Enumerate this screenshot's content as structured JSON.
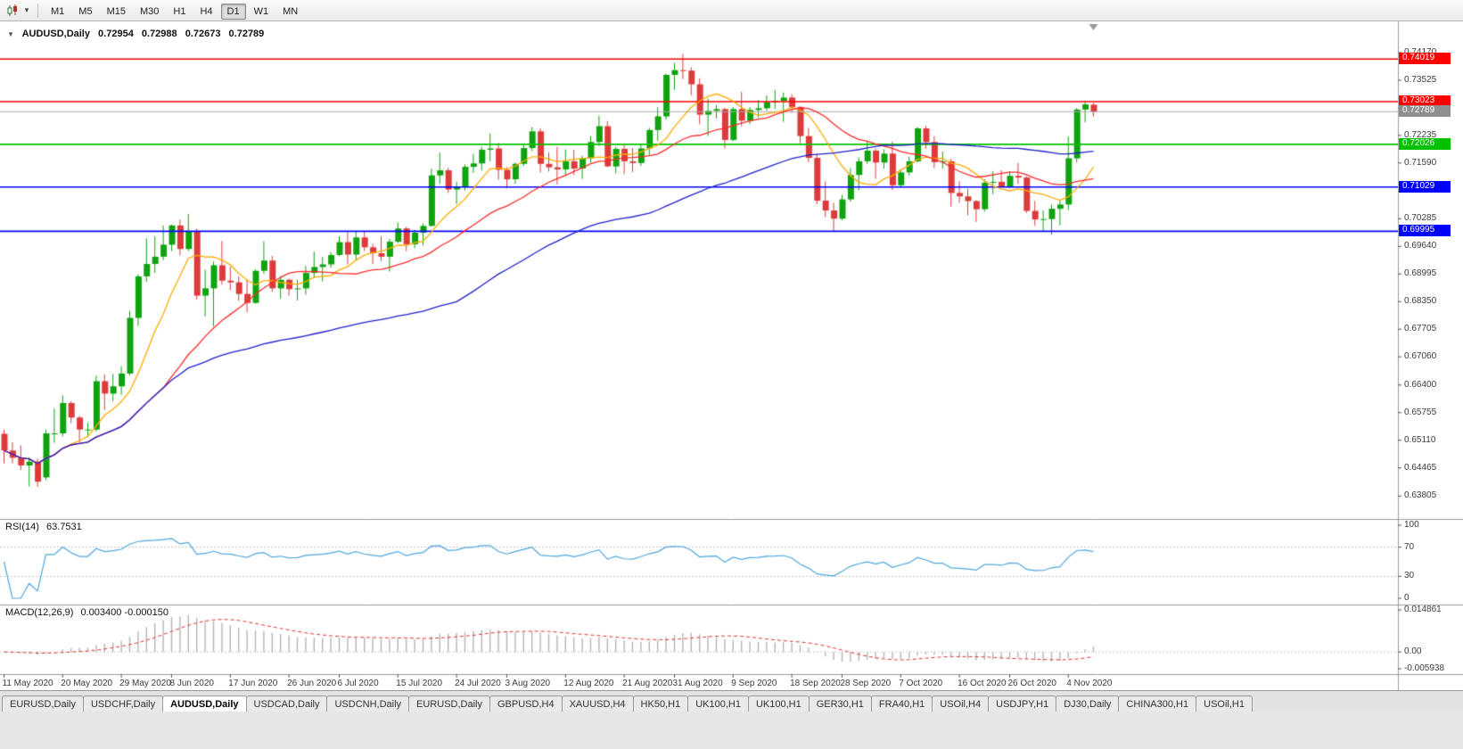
{
  "toolbar": {
    "chart_type_icon": "candlestick-chart-icon",
    "dropdown_glyph": "▾",
    "timeframes": [
      "M1",
      "M5",
      "M15",
      "M30",
      "H1",
      "H4",
      "D1",
      "W1",
      "MN"
    ],
    "active_timeframe": "D1"
  },
  "chart_header": {
    "collapse_glyph": "▼",
    "symbol": "AUDUSD,Daily",
    "open": "0.72954",
    "high": "0.72988",
    "low": "0.72673",
    "close": "0.72789"
  },
  "price_axis": {
    "tick_labels": [
      "0.74170",
      "0.73525",
      "0.72880",
      "0.72235",
      "0.71590",
      "0.70930",
      "0.70285",
      "0.69640",
      "0.68995",
      "0.68350",
      "0.67705",
      "0.67060",
      "0.66400",
      "0.65755",
      "0.65110",
      "0.64465",
      "0.63805"
    ]
  },
  "rsi_panel": {
    "label": "RSI(14)",
    "value": "63.7531",
    "tick_labels": [
      "100",
      "70",
      "30",
      "0"
    ],
    "level_lines": [
      70,
      30
    ],
    "line_color": "#4da6dd"
  },
  "macd_panel": {
    "label": "MACD(12,26,9)",
    "values": "0.003400 -0.000150",
    "tick_labels": [
      "0.014861",
      "0.00",
      "-0.005938"
    ],
    "scale_max": 0.014861,
    "scale_min": -0.005938,
    "hist_color": "#b4b4b4",
    "signal_color": "#e03232"
  },
  "tabs": {
    "items": [
      "EURUSD,Daily",
      "USDCHF,Daily",
      "AUDUSD,Daily",
      "USDCAD,Daily",
      "USDCNH,Daily",
      "EURUSD,Daily",
      "GBPUSD,H4",
      "XAUUSD,H4",
      "HK50,H1",
      "UK100,H1",
      "UK100,H1",
      "GER30,H1",
      "FRA40,H1",
      "USOil,H4",
      "USDJPY,H1",
      "DJ30,Daily",
      "CHINA300,H1",
      "USOil,H1"
    ],
    "active_index": 2
  },
  "chart_data": {
    "type": "candlestick",
    "title": "AUDUSD,Daily",
    "scale_max": 0.749,
    "scale_min": 0.6327,
    "levels": [
      {
        "label": "0.74019",
        "price": 0.74019,
        "color": "#ff0000"
      },
      {
        "label": "0.73023",
        "price": 0.73023,
        "color": "#ff0000"
      },
      {
        "label": "0.72026",
        "price": 0.72026,
        "color": "#00c000"
      },
      {
        "label": "0.71029",
        "price": 0.71029,
        "color": "#0000ff"
      },
      {
        "label": "0.69995",
        "price": 0.69995,
        "color": "#0000ff"
      }
    ],
    "bid": {
      "label": "0.72789",
      "price": 0.72789,
      "color": "#8f8f8f"
    },
    "moving_averages": [
      {
        "type": "sma",
        "period": 8,
        "color": "#ffaa00"
      },
      {
        "type": "sma",
        "period": 20,
        "color": "#ff2a2a"
      },
      {
        "type": "sma",
        "period": 55,
        "color": "#2020cc"
      }
    ],
    "candle_colors": {
      "bull": "#0fa30f",
      "bear": "#dd3b3b"
    },
    "x_axis_labels": [
      [
        0,
        "11 May 2020"
      ],
      [
        7,
        "20 May 2020"
      ],
      [
        14,
        "29 May 2020"
      ],
      [
        20,
        "8 Jun 2020"
      ],
      [
        27,
        "17 Jun 2020"
      ],
      [
        34,
        "26 Jun 2020"
      ],
      [
        40,
        "6 Jul 2020"
      ],
      [
        47,
        "15 Jul 2020"
      ],
      [
        54,
        "24 Jul 2020"
      ],
      [
        60,
        "3 Aug 2020"
      ],
      [
        67,
        "12 Aug 2020"
      ],
      [
        74,
        "21 Aug 2020"
      ],
      [
        80,
        "31 Aug 2020"
      ],
      [
        87,
        "9 Sep 2020"
      ],
      [
        94,
        "18 Sep 2020"
      ],
      [
        100,
        "28 Sep 2020"
      ],
      [
        107,
        "7 Oct 2020"
      ],
      [
        114,
        "16 Oct 2020"
      ],
      [
        120,
        "26 Oct 2020"
      ],
      [
        127,
        "4 Nov 2020"
      ]
    ],
    "candles": [
      [
        "11 May",
        0.6526,
        0.6536,
        0.6457,
        0.6487
      ],
      [
        "12 May",
        0.6487,
        0.6506,
        0.6457,
        0.647
      ],
      [
        "13 May",
        0.647,
        0.6499,
        0.6441,
        0.6452
      ],
      [
        "14 May",
        0.6452,
        0.6471,
        0.6403,
        0.6461
      ],
      [
        "15 May",
        0.6461,
        0.6468,
        0.6402,
        0.6414
      ],
      [
        "18 May",
        0.6424,
        0.6536,
        0.6418,
        0.6527
      ],
      [
        "19 May",
        0.6527,
        0.6585,
        0.6505,
        0.6527
      ],
      [
        "20 May",
        0.6527,
        0.6616,
        0.652,
        0.6598
      ],
      [
        "21 May",
        0.6598,
        0.6602,
        0.6551,
        0.6564
      ],
      [
        "22 May",
        0.6564,
        0.6568,
        0.6506,
        0.6536
      ],
      [
        "25 May",
        0.6536,
        0.6552,
        0.6518,
        0.6536
      ],
      [
        "26 May",
        0.6536,
        0.6662,
        0.6532,
        0.6649
      ],
      [
        "27 May",
        0.6649,
        0.6665,
        0.6582,
        0.662
      ],
      [
        "28 May",
        0.662,
        0.6666,
        0.6602,
        0.6637
      ],
      [
        "29 May",
        0.6637,
        0.6684,
        0.6617,
        0.6667
      ],
      [
        "1 Jun",
        0.6667,
        0.6813,
        0.6662,
        0.6797
      ],
      [
        "2 Jun",
        0.6797,
        0.6899,
        0.6778,
        0.6894
      ],
      [
        "3 Jun",
        0.6894,
        0.6983,
        0.6881,
        0.6923
      ],
      [
        "4 Jun",
        0.6923,
        0.6988,
        0.6902,
        0.694
      ],
      [
        "5 Jun",
        0.694,
        0.7013,
        0.6932,
        0.6968
      ],
      [
        "8 Jun",
        0.6968,
        0.7015,
        0.6953,
        0.7013
      ],
      [
        "9 Jun",
        0.7013,
        0.7027,
        0.6943,
        0.6958
      ],
      [
        "10 Jun",
        0.6958,
        0.704,
        0.6953,
        0.7
      ],
      [
        "11 Jun",
        0.7,
        0.7006,
        0.684,
        0.6849
      ],
      [
        "12 Jun",
        0.6849,
        0.691,
        0.68,
        0.6866
      ],
      [
        "15 Jun",
        0.6866,
        0.6929,
        0.6777,
        0.692
      ],
      [
        "16 Jun",
        0.692,
        0.6977,
        0.6875,
        0.6884
      ],
      [
        "17 Jun",
        0.6884,
        0.6917,
        0.6862,
        0.688
      ],
      [
        "18 Jun",
        0.688,
        0.6894,
        0.6837,
        0.6853
      ],
      [
        "19 Jun",
        0.6853,
        0.6886,
        0.681,
        0.6832
      ],
      [
        "22 Jun",
        0.6832,
        0.691,
        0.683,
        0.6907
      ],
      [
        "23 Jun",
        0.6907,
        0.6976,
        0.69,
        0.6931
      ],
      [
        "24 Jun",
        0.6931,
        0.6942,
        0.6858,
        0.6866
      ],
      [
        "25 Jun",
        0.6866,
        0.6895,
        0.6842,
        0.6886
      ],
      [
        "26 Jun",
        0.6886,
        0.6889,
        0.6849,
        0.6864
      ],
      [
        "29 Jun",
        0.6864,
        0.6886,
        0.6838,
        0.6866
      ],
      [
        "30 Jun",
        0.6866,
        0.6919,
        0.6851,
        0.6902
      ],
      [
        "1 Jul",
        0.6902,
        0.6952,
        0.689,
        0.6916
      ],
      [
        "2 Jul",
        0.6916,
        0.694,
        0.6882,
        0.6922
      ],
      [
        "3 Jul",
        0.6922,
        0.6951,
        0.6914,
        0.6944
      ],
      [
        "6 Jul",
        0.6944,
        0.6988,
        0.6941,
        0.6974
      ],
      [
        "7 Jul",
        0.6974,
        0.6997,
        0.6922,
        0.6945
      ],
      [
        "8 Jul",
        0.6945,
        0.6999,
        0.6931,
        0.6985
      ],
      [
        "9 Jul",
        0.6985,
        0.6998,
        0.6953,
        0.6962
      ],
      [
        "10 Jul",
        0.6962,
        0.697,
        0.6923,
        0.6948
      ],
      [
        "13 Jul",
        0.6948,
        0.6988,
        0.693,
        0.694
      ],
      [
        "14 Jul",
        0.694,
        0.6982,
        0.6905,
        0.6975
      ],
      [
        "15 Jul",
        0.6975,
        0.702,
        0.6972,
        0.7006
      ],
      [
        "16 Jul",
        0.7006,
        0.701,
        0.6953,
        0.6969
      ],
      [
        "17 Jul",
        0.6969,
        0.7003,
        0.696,
        0.6996
      ],
      [
        "20 Jul",
        0.6996,
        0.7018,
        0.6966,
        0.7012
      ],
      [
        "21 Jul",
        0.7012,
        0.7146,
        0.701,
        0.713
      ],
      [
        "22 Jul",
        0.713,
        0.7183,
        0.711,
        0.7142
      ],
      [
        "23 Jul",
        0.7142,
        0.7148,
        0.7089,
        0.7097
      ],
      [
        "24 Jul",
        0.7097,
        0.7115,
        0.7063,
        0.7104
      ],
      [
        "27 Jul",
        0.7104,
        0.7156,
        0.7095,
        0.715
      ],
      [
        "28 Jul",
        0.715,
        0.718,
        0.7136,
        0.7158
      ],
      [
        "29 Jul",
        0.7158,
        0.7197,
        0.7142,
        0.719
      ],
      [
        "30 Jul",
        0.719,
        0.7228,
        0.7163,
        0.7193
      ],
      [
        "31 Jul",
        0.7193,
        0.7206,
        0.712,
        0.7143
      ],
      [
        "3 Aug",
        0.7143,
        0.7149,
        0.71,
        0.7121
      ],
      [
        "4 Aug",
        0.7121,
        0.716,
        0.711,
        0.7157
      ],
      [
        "5 Aug",
        0.7157,
        0.7202,
        0.7152,
        0.7194
      ],
      [
        "6 Aug",
        0.7194,
        0.7243,
        0.7187,
        0.7233
      ],
      [
        "7 Aug",
        0.7233,
        0.724,
        0.7137,
        0.7157
      ],
      [
        "10 Aug",
        0.7157,
        0.7184,
        0.7139,
        0.7149
      ],
      [
        "11 Aug",
        0.7149,
        0.7197,
        0.7109,
        0.7144
      ],
      [
        "12 Aug",
        0.7144,
        0.7191,
        0.7131,
        0.7163
      ],
      [
        "13 Aug",
        0.7163,
        0.719,
        0.7131,
        0.7146
      ],
      [
        "14 Aug",
        0.7146,
        0.7176,
        0.7122,
        0.717
      ],
      [
        "17 Aug",
        0.717,
        0.7222,
        0.716,
        0.7208
      ],
      [
        "18 Aug",
        0.7208,
        0.727,
        0.7199,
        0.7245
      ],
      [
        "19 Aug",
        0.7245,
        0.7257,
        0.715,
        0.7151
      ],
      [
        "20 Aug",
        0.7151,
        0.7197,
        0.7135,
        0.7192
      ],
      [
        "21 Aug",
        0.7192,
        0.72,
        0.7133,
        0.7163
      ],
      [
        "24 Aug",
        0.7163,
        0.7194,
        0.7138,
        0.7159
      ],
      [
        "25 Aug",
        0.7159,
        0.7203,
        0.7152,
        0.7193
      ],
      [
        "26 Aug",
        0.7193,
        0.7241,
        0.7177,
        0.7236
      ],
      [
        "27 Aug",
        0.7236,
        0.729,
        0.7211,
        0.7268
      ],
      [
        "28 Aug",
        0.7268,
        0.7368,
        0.726,
        0.7365
      ],
      [
        "31 Aug",
        0.7365,
        0.7393,
        0.733,
        0.7376
      ],
      [
        "1 Sep",
        0.7376,
        0.7414,
        0.7355,
        0.7375
      ],
      [
        "2 Sep",
        0.7375,
        0.7383,
        0.7317,
        0.7343
      ],
      [
        "3 Sep",
        0.7343,
        0.7357,
        0.725,
        0.7272
      ],
      [
        "4 Sep",
        0.7272,
        0.731,
        0.7222,
        0.7281
      ],
      [
        "7 Sep",
        0.7281,
        0.7295,
        0.7263,
        0.7285
      ],
      [
        "8 Sep",
        0.7285,
        0.7288,
        0.7193,
        0.7213
      ],
      [
        "9 Sep",
        0.7213,
        0.729,
        0.721,
        0.7285
      ],
      [
        "10 Sep",
        0.7285,
        0.7325,
        0.7245,
        0.7258
      ],
      [
        "11 Sep",
        0.7258,
        0.729,
        0.725,
        0.7283
      ],
      [
        "14 Sep",
        0.7283,
        0.7306,
        0.7265,
        0.7287
      ],
      [
        "15 Sep",
        0.7287,
        0.7317,
        0.7281,
        0.7301
      ],
      [
        "16 Sep",
        0.7301,
        0.733,
        0.7285,
        0.7304
      ],
      [
        "17 Sep",
        0.7304,
        0.7324,
        0.7255,
        0.7312
      ],
      [
        "18 Sep",
        0.7312,
        0.732,
        0.7276,
        0.729
      ],
      [
        "21 Sep",
        0.729,
        0.7292,
        0.7205,
        0.7222
      ],
      [
        "22 Sep",
        0.7222,
        0.7241,
        0.7161,
        0.7171
      ],
      [
        "23 Sep",
        0.7171,
        0.718,
        0.7063,
        0.7071
      ],
      [
        "24 Sep",
        0.7071,
        0.7116,
        0.7033,
        0.7048
      ],
      [
        "25 Sep",
        0.7048,
        0.7066,
        0.7,
        0.7029
      ],
      [
        "28 Sep",
        0.7029,
        0.7085,
        0.7025,
        0.7074
      ],
      [
        "29 Sep",
        0.7074,
        0.7147,
        0.7068,
        0.7131
      ],
      [
        "30 Sep",
        0.7131,
        0.7172,
        0.7095,
        0.7163
      ],
      [
        "1 Oct",
        0.7163,
        0.7209,
        0.7157,
        0.7188
      ],
      [
        "2 Oct",
        0.7188,
        0.7193,
        0.7122,
        0.716
      ],
      [
        "5 Oct",
        0.716,
        0.7191,
        0.7146,
        0.7181
      ],
      [
        "6 Oct",
        0.7181,
        0.7209,
        0.7096,
        0.7107
      ],
      [
        "7 Oct",
        0.7107,
        0.7144,
        0.7101,
        0.7137
      ],
      [
        "8 Oct",
        0.7137,
        0.7174,
        0.713,
        0.7163
      ],
      [
        "9 Oct",
        0.7163,
        0.7243,
        0.716,
        0.724
      ],
      [
        "12 Oct",
        0.724,
        0.7246,
        0.7192,
        0.7208
      ],
      [
        "13 Oct",
        0.7208,
        0.7222,
        0.7147,
        0.7161
      ],
      [
        "14 Oct",
        0.7161,
        0.7186,
        0.7146,
        0.7163
      ],
      [
        "15 Oct",
        0.7163,
        0.7169,
        0.7057,
        0.7089
      ],
      [
        "16 Oct",
        0.7089,
        0.7116,
        0.7066,
        0.7081
      ],
      [
        "19 Oct",
        0.7081,
        0.7099,
        0.7037,
        0.707
      ],
      [
        "20 Oct",
        0.707,
        0.7072,
        0.7021,
        0.7051
      ],
      [
        "21 Oct",
        0.7051,
        0.7121,
        0.7045,
        0.7113
      ],
      [
        "22 Oct",
        0.7113,
        0.714,
        0.7086,
        0.7115
      ],
      [
        "23 Oct",
        0.7115,
        0.7142,
        0.7103,
        0.7104
      ],
      [
        "26 Oct",
        0.7104,
        0.714,
        0.7101,
        0.7129
      ],
      [
        "27 Oct",
        0.7129,
        0.7159,
        0.711,
        0.7125
      ],
      [
        "28 Oct",
        0.7125,
        0.7128,
        0.7042,
        0.7047
      ],
      [
        "29 Oct",
        0.7047,
        0.707,
        0.7012,
        0.7027
      ],
      [
        "30 Oct",
        0.7027,
        0.7048,
        0.7001,
        0.7028
      ],
      [
        "2 Nov",
        0.7028,
        0.7062,
        0.6991,
        0.7052
      ],
      [
        "3 Nov",
        0.7052,
        0.7072,
        0.7013,
        0.7062
      ],
      [
        "4 Nov",
        0.7062,
        0.7221,
        0.7049,
        0.717
      ],
      [
        "5 Nov",
        0.717,
        0.7288,
        0.716,
        0.7284
      ],
      [
        "6 Nov",
        0.7284,
        0.7305,
        0.7254,
        0.7296
      ],
      [
        "9 Nov",
        0.72954,
        0.72988,
        0.72673,
        0.72789
      ]
    ]
  }
}
